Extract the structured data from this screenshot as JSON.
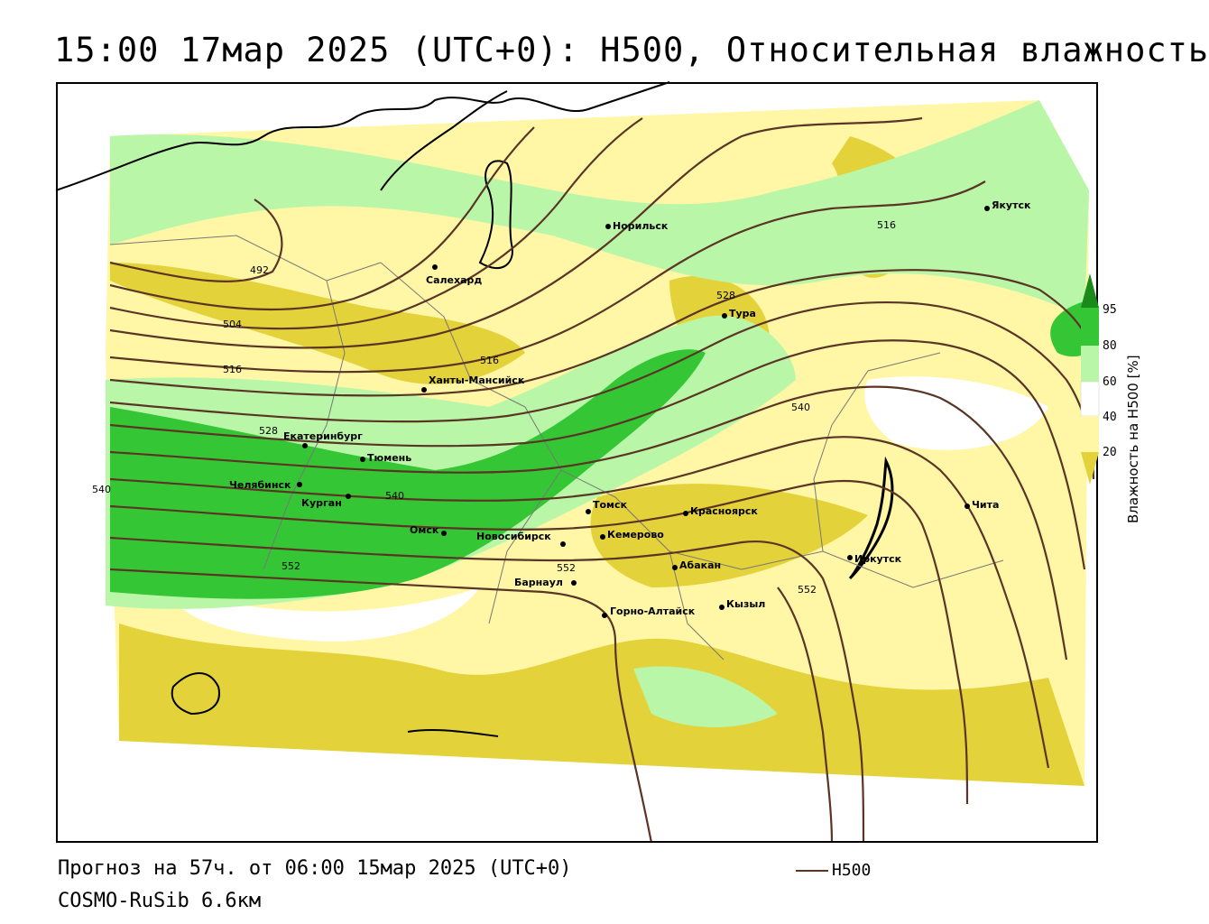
{
  "title": "15:00 17мар 2025 (UTC+0): H500, Относительная влажность",
  "footer": {
    "forecast": "Прогноз на 57ч. от 06:00 15мар 2025 (UTC+0)",
    "model": "COSMO-RuSib 6.6км"
  },
  "legend": {
    "contour_label": "H500",
    "contour_color": "#5a3525"
  },
  "colorbar": {
    "title": "Влажность на H500 [%]",
    "ticks": [
      "95",
      "80",
      "60",
      "40",
      "20"
    ],
    "colors": {
      "lt20": "#e3d23a",
      "20_40": "#fff6a6",
      "40_60": "#ffffff",
      "60_80": "#b9f6a8",
      "80_95": "#35c635",
      "gt95": "#1a8a1a"
    }
  },
  "cities": [
    {
      "name": "Норильск"
    },
    {
      "name": "Якутск"
    },
    {
      "name": "Салехард"
    },
    {
      "name": "Тура"
    },
    {
      "name": "Ханты-Мансийск"
    },
    {
      "name": "Екатеринбург"
    },
    {
      "name": "Тюмень"
    },
    {
      "name": "Челябинск"
    },
    {
      "name": "Курган"
    },
    {
      "name": "Омск"
    },
    {
      "name": "Новосибирск"
    },
    {
      "name": "Томск"
    },
    {
      "name": "Красноярск"
    },
    {
      "name": "Кемерово"
    },
    {
      "name": "Барнаул"
    },
    {
      "name": "Абакан"
    },
    {
      "name": "Горно-Алтайск"
    },
    {
      "name": "Кызыл"
    },
    {
      "name": "Иркутск"
    },
    {
      "name": "Чита"
    }
  ],
  "contour_labels": [
    "492",
    "504",
    "516",
    "516",
    "516",
    "528",
    "528",
    "540",
    "540",
    "540",
    "552",
    "552",
    "552"
  ]
}
